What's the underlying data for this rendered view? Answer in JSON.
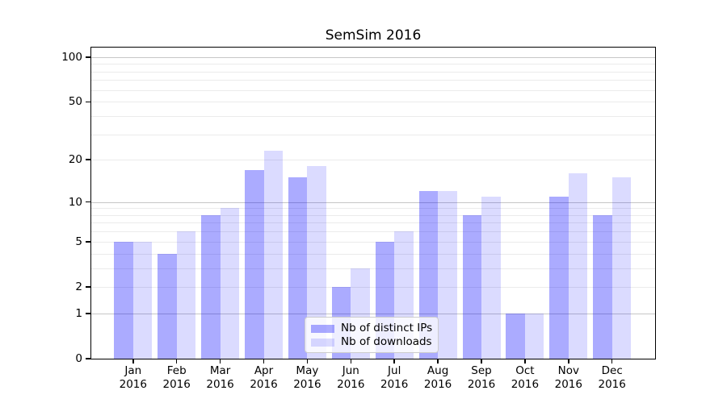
{
  "title": "SemSim 2016",
  "chart_data": {
    "type": "bar",
    "title": "SemSim 2016",
    "categories": [
      "Jan",
      "Feb",
      "Mar",
      "Apr",
      "May",
      "Jun",
      "Jul",
      "Aug",
      "Sep",
      "Oct",
      "Nov",
      "Dec"
    ],
    "category_year": "2016",
    "series": [
      {
        "name": "Nb of distinct IPs",
        "color": "rgba(0,0,255,0.33)",
        "values": [
          5,
          4,
          8,
          17,
          15,
          2,
          5,
          12,
          8,
          1,
          11,
          8
        ]
      },
      {
        "name": "Nb of downloads",
        "color": "rgba(0,0,255,0.14)",
        "values": [
          5,
          6,
          9,
          23,
          18,
          3,
          6,
          12,
          11,
          1,
          16,
          15
        ]
      }
    ],
    "yscale": "log1p",
    "ylim": [
      0,
      116
    ],
    "yticks": [
      0,
      1,
      2,
      5,
      10,
      20,
      50,
      100
    ],
    "major_gridlines": [
      1,
      10,
      100
    ],
    "minor_gridlines": [
      2,
      3,
      4,
      5,
      6,
      7,
      8,
      9,
      20,
      30,
      40,
      50,
      60,
      70,
      80,
      90
    ],
    "grid": true,
    "xlabel": "",
    "ylabel": "",
    "legend": {
      "position": "lower-center"
    }
  },
  "colors": {
    "bar_distinct_ips": "rgba(0,0,255,0.33)",
    "bar_downloads": "rgba(0,0,255,0.14)",
    "major_grid": "#c6c6c6",
    "minor_grid": "#ebebeb",
    "axis": "#000000",
    "background": "#ffffff"
  }
}
